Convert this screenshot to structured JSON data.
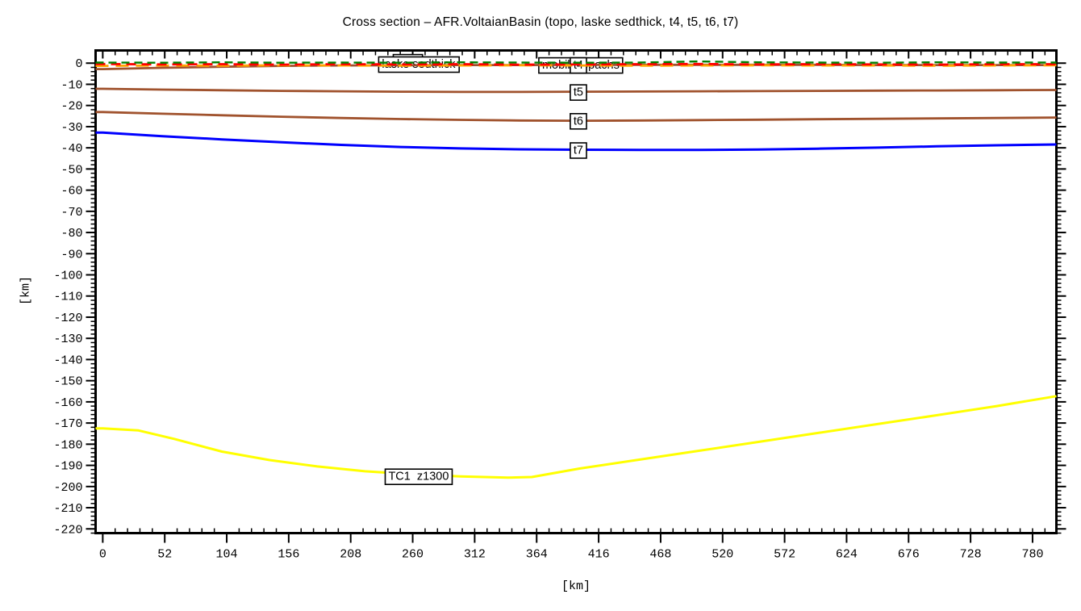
{
  "title": "Cross section – AFR.VoltaianBasin (topo, laske sedthick, t4, t5, t6, t7)",
  "chart_data": {
    "type": "line",
    "title": "Cross section – AFR.VoltaianBasin (topo, laske sedthick, t4, t5, t6, t7)",
    "xlabel": "[km]",
    "ylabel": "[km]",
    "xlim": [
      -6,
      800
    ],
    "ylim": [
      -222,
      6
    ],
    "grid": false,
    "legend_position": "none",
    "x_major_ticks": [
      0,
      52,
      104,
      156,
      208,
      260,
      312,
      364,
      416,
      468,
      520,
      572,
      624,
      676,
      728,
      780
    ],
    "x_minor_step": 10.4,
    "y_major_ticks": [
      0,
      -10,
      -20,
      -30,
      -40,
      -50,
      -60,
      -70,
      -80,
      -90,
      -100,
      -110,
      -120,
      -130,
      -140,
      -150,
      -160,
      -170,
      -180,
      -190,
      -200,
      -210,
      -220
    ],
    "y_minor_step": 2,
    "frame_color": "#000000",
    "series": [
      {
        "name": "t5",
        "color": "#a0522d",
        "dash": "",
        "width": 2.8,
        "z": 1,
        "x": [
          0,
          50,
          100,
          150,
          200,
          250,
          300,
          350,
          400,
          450,
          500,
          550,
          600,
          650,
          700,
          750,
          800
        ],
        "y": [
          -12.1,
          -12.5,
          -12.8,
          -13.1,
          -13.3,
          -13.5,
          -13.6,
          -13.6,
          -13.5,
          -13.4,
          -13.3,
          -13.2,
          -13.1,
          -13.0,
          -12.9,
          -12.8,
          -12.7
        ]
      },
      {
        "name": "t6",
        "color": "#a0522d",
        "dash": "",
        "width": 2.8,
        "z": 2,
        "x": [
          0,
          50,
          100,
          150,
          200,
          250,
          300,
          350,
          400,
          450,
          500,
          550,
          600,
          650,
          700,
          750,
          800
        ],
        "y": [
          -23.1,
          -23.9,
          -24.6,
          -25.3,
          -25.9,
          -26.4,
          -26.8,
          -27.1,
          -27.2,
          -27.1,
          -26.9,
          -26.7,
          -26.5,
          -26.3,
          -26.1,
          -25.9,
          -25.7
        ]
      },
      {
        "name": "t7",
        "color": "#0000ff",
        "dash": "",
        "width": 3,
        "z": 3,
        "x": [
          0,
          50,
          100,
          150,
          200,
          250,
          300,
          350,
          400,
          450,
          500,
          550,
          600,
          650,
          700,
          750,
          800
        ],
        "y": [
          -32.8,
          -34.5,
          -36.0,
          -37.4,
          -38.6,
          -39.6,
          -40.3,
          -40.7,
          -40.9,
          -41.0,
          -41.0,
          -40.8,
          -40.4,
          -39.9,
          -39.3,
          -38.8,
          -38.4
        ]
      },
      {
        "name": "TC1_z1300",
        "color": "#ffff00",
        "dash": "",
        "width": 3,
        "z": 4,
        "x": [
          0,
          30,
          60,
          100,
          140,
          180,
          220,
          260,
          300,
          340,
          360,
          400,
          450,
          500,
          550,
          600,
          650,
          700,
          750,
          800
        ],
        "y": [
          -172.5,
          -173.5,
          -177.5,
          -183.5,
          -187.5,
          -190.5,
          -192.8,
          -194.2,
          -195.2,
          -195.8,
          -195.5,
          -191.5,
          -187.3,
          -183.1,
          -178.9,
          -174.7,
          -170.5,
          -166.3,
          -162.0,
          -157.3
        ]
      },
      {
        "name": "t4",
        "color": "#a0522d",
        "dash": "",
        "width": 2.8,
        "z": 30,
        "x": [
          0,
          50,
          100,
          150,
          200,
          250,
          300,
          350,
          400,
          450,
          500,
          550,
          600,
          650,
          700,
          750,
          800
        ],
        "y": [
          -2.8,
          -2.2,
          -1.7,
          -1.3,
          -1.1,
          -1.0,
          -0.9,
          -0.9,
          -0.8,
          -0.8,
          -0.8,
          -0.8,
          -0.8,
          -0.9,
          -0.9,
          -0.9,
          -0.9
        ]
      },
      {
        "name": "mobil_isopachs",
        "color": "#ffa500",
        "dash": "16 9",
        "width": 2.8,
        "z": 40,
        "x": [
          0,
          50,
          100,
          150,
          200,
          250,
          300,
          350,
          400,
          450,
          500,
          550,
          600,
          650,
          700,
          750,
          800
        ],
        "y": [
          -1.3,
          -1.1,
          -1.2,
          -1.0,
          -1.1,
          -1.2,
          -1.1,
          -1.0,
          -1.1,
          -1.2,
          -1.1,
          -1.0,
          -1.1,
          -1.1,
          -1.2,
          -1.1,
          -1.0
        ]
      },
      {
        "name": "laske_sedthick",
        "color": "#ff0000",
        "dash": "12 7",
        "width": 2.8,
        "z": 41,
        "x": [
          0,
          50,
          100,
          150,
          200,
          250,
          300,
          350,
          400,
          450,
          500,
          550,
          600,
          650,
          700,
          750,
          800
        ],
        "y": [
          -0.4,
          -0.6,
          -0.5,
          -0.7,
          -0.5,
          -0.6,
          -0.5,
          -0.7,
          -0.6,
          -0.5,
          -0.4,
          -0.6,
          -0.5,
          -0.6,
          -0.7,
          -0.5,
          -0.5
        ]
      },
      {
        "name": "topo",
        "color": "#007f00",
        "dash": "10 6",
        "width": 2.4,
        "z": 42,
        "x": [
          0,
          50,
          100,
          150,
          200,
          250,
          300,
          350,
          400,
          450,
          500,
          550,
          600,
          650,
          700,
          750,
          800
        ],
        "y": [
          0.3,
          0.2,
          0.4,
          0.2,
          0.3,
          0.2,
          0.4,
          0.3,
          0.2,
          0.3,
          0.8,
          0.4,
          0.3,
          0.2,
          0.4,
          0.3,
          0.3
        ]
      }
    ],
    "labels": [
      {
        "text": "t5",
        "x": 399,
        "y": -13.5,
        "z": 10
      },
      {
        "text": "t6",
        "x": 399,
        "y": -27.1,
        "z": 11
      },
      {
        "text": "t7",
        "x": 399,
        "y": -40.9,
        "z": 12
      },
      {
        "text": "TC1  z1300",
        "x": 265,
        "y": -195.0,
        "z": 13
      },
      {
        "text": "topo",
        "x": 256,
        "y": 0.8,
        "z": 20
      },
      {
        "text": "laske sedthick",
        "x": 265,
        "y": -0.3,
        "z": 21
      },
      {
        "text": "mobil isopachs",
        "x": 401,
        "y": -0.7,
        "z": 22
      },
      {
        "text": "t4",
        "x": 399,
        "y": -0.7,
        "z": 31
      }
    ]
  }
}
